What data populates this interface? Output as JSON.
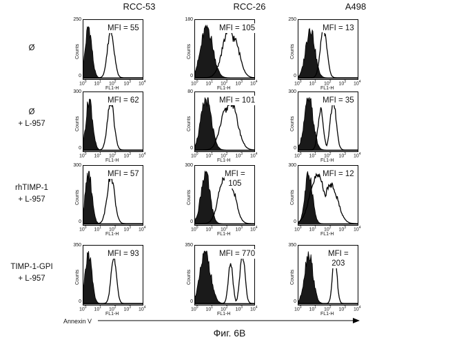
{
  "columns": [
    "RCC-53",
    "RCC-26",
    "A498"
  ],
  "rows": [
    {
      "label_line1": "Ø",
      "label_line2": ""
    },
    {
      "label_line1": "Ø",
      "label_line2": "+ L-957"
    },
    {
      "label_line1": "rhTIMP-1",
      "label_line2": "+ L-957"
    },
    {
      "label_line1": "TIMP-1-GPI",
      "label_line2": "+ L-957"
    }
  ],
  "axis": {
    "ylabel": "Counts",
    "xlabel": "FL1-H",
    "xticks": [
      "10",
      "10",
      "10",
      "10",
      "10"
    ],
    "xtick_exps": [
      "0",
      "1",
      "2",
      "3",
      "4"
    ],
    "xrange_log10": [
      0,
      4
    ],
    "x_axis_title": "Annexin V"
  },
  "caption": "Фиг. 6В",
  "chart_data": {
    "type": "histogram-grid",
    "title": "",
    "x_scale": "log10",
    "x_label": "FL1-H",
    "y_label": "Counts",
    "panels": [
      {
        "row": 0,
        "col": 0,
        "ymax": "250",
        "mfi_lines": [
          "MFI = 55"
        ],
        "filled_peak": 0.35,
        "filled_width": 0.22,
        "open_peak": 1.85,
        "open_width": 0.22,
        "open_shoulder": null
      },
      {
        "row": 0,
        "col": 1,
        "ymax": "180",
        "mfi_lines": [
          "MFI = 105"
        ],
        "filled_peak": 0.8,
        "filled_width": 0.4,
        "open_peak": 2.3,
        "open_width": 0.45,
        "open_shoulder": 2.6
      },
      {
        "row": 0,
        "col": 2,
        "ymax": "250",
        "mfi_lines": [
          "MFI = 13"
        ],
        "filled_peak": 0.8,
        "filled_width": 0.3,
        "open_peak": 1.7,
        "open_width": 0.22,
        "open_shoulder": null
      },
      {
        "row": 1,
        "col": 0,
        "ymax": "300",
        "mfi_lines": [
          "MFI = 62"
        ],
        "filled_peak": 0.4,
        "filled_width": 0.22,
        "open_peak": 1.85,
        "open_width": 0.22,
        "open_shoulder": null
      },
      {
        "row": 1,
        "col": 1,
        "ymax": "80",
        "mfi_lines": [
          "MFI = 101"
        ],
        "filled_peak": 0.75,
        "filled_width": 0.35,
        "open_peak": 2.4,
        "open_width": 0.45,
        "open_shoulder": 2.1
      },
      {
        "row": 1,
        "col": 2,
        "ymax": "300",
        "mfi_lines": [
          "MFI = 35"
        ],
        "filled_peak": 0.7,
        "filled_width": 0.3,
        "open_peak": 2.35,
        "open_width": 0.2,
        "open_shoulder": 1.5
      },
      {
        "row": 2,
        "col": 0,
        "ymax": "300",
        "mfi_lines": [
          "MFI = 57"
        ],
        "filled_peak": 0.35,
        "filled_width": 0.22,
        "open_peak": 1.85,
        "open_width": 0.25,
        "open_shoulder": null
      },
      {
        "row": 2,
        "col": 1,
        "ymax": "300",
        "mfi_lines": [
          "MFI =",
          "105"
        ],
        "filled_peak": 0.7,
        "filled_width": 0.3,
        "open_peak": 2.0,
        "open_width": 0.4,
        "open_shoulder": 2.4
      },
      {
        "row": 2,
        "col": 2,
        "ymax": "300",
        "mfi_lines": [
          "MFI = 12"
        ],
        "filled_peak": 0.7,
        "filled_width": 0.25,
        "open_peak": 1.3,
        "open_width": 0.5,
        "open_shoulder": 2.2
      },
      {
        "row": 3,
        "col": 0,
        "ymax": "350",
        "mfi_lines": [
          "MFI = 93"
        ],
        "filled_peak": 0.35,
        "filled_width": 0.22,
        "open_peak": 2.05,
        "open_width": 0.18,
        "open_shoulder": null
      },
      {
        "row": 3,
        "col": 1,
        "ymax": "350",
        "mfi_lines": [
          "MFI = 770"
        ],
        "filled_peak": 0.7,
        "filled_width": 0.35,
        "open_peak": 3.2,
        "open_width": 0.17,
        "open_shoulder": 2.4
      },
      {
        "row": 3,
        "col": 2,
        "ymax": "350",
        "mfi_lines": [
          "MFI =",
          "203"
        ],
        "filled_peak": 0.7,
        "filled_width": 0.28,
        "open_peak": 2.45,
        "open_width": 0.15,
        "open_shoulder": null
      }
    ]
  }
}
